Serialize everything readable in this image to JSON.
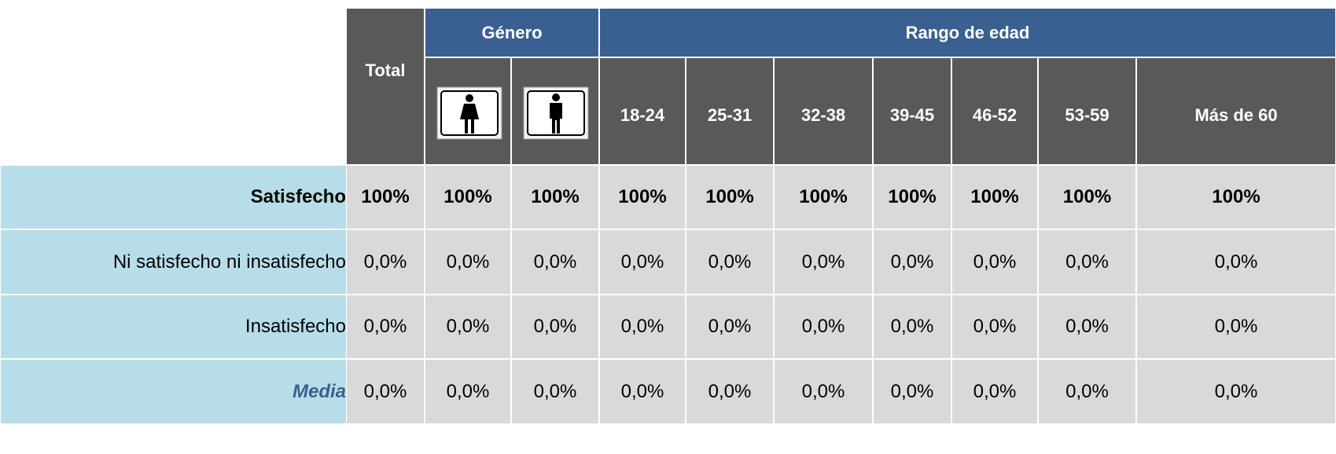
{
  "header": {
    "total": "Total",
    "groups": [
      "Género",
      "Rango de edad"
    ],
    "age_ranges": [
      "18-24",
      "25-31",
      "32-38",
      "39-45",
      "46-52",
      "53-59",
      "Más de 60"
    ]
  },
  "table": {
    "rows": [
      {
        "label": "Satisfecho",
        "values": [
          "100%",
          "100%",
          "100%",
          "100%",
          "100%",
          "100%",
          "100%",
          "100%",
          "100%",
          "100%"
        ]
      },
      {
        "label": "Ni satisfecho ni insatisfecho",
        "values": [
          "0,0%",
          "0,0%",
          "0,0%",
          "0,0%",
          "0,0%",
          "0,0%",
          "0,0%",
          "0,0%",
          "0,0%",
          "0,0%"
        ]
      },
      {
        "label": "Insatisfecho",
        "values": [
          "0,0%",
          "0,0%",
          "0,0%",
          "0,0%",
          "0,0%",
          "0,0%",
          "0,0%",
          "0,0%",
          "0,0%",
          "0,0%"
        ]
      },
      {
        "label": "Media",
        "values": [
          "0,0%",
          "0,0%",
          "0,0%",
          "0,0%",
          "0,0%",
          "0,0%",
          "0,0%",
          "0,0%",
          "0,0%",
          "0,0%"
        ]
      }
    ]
  }
}
